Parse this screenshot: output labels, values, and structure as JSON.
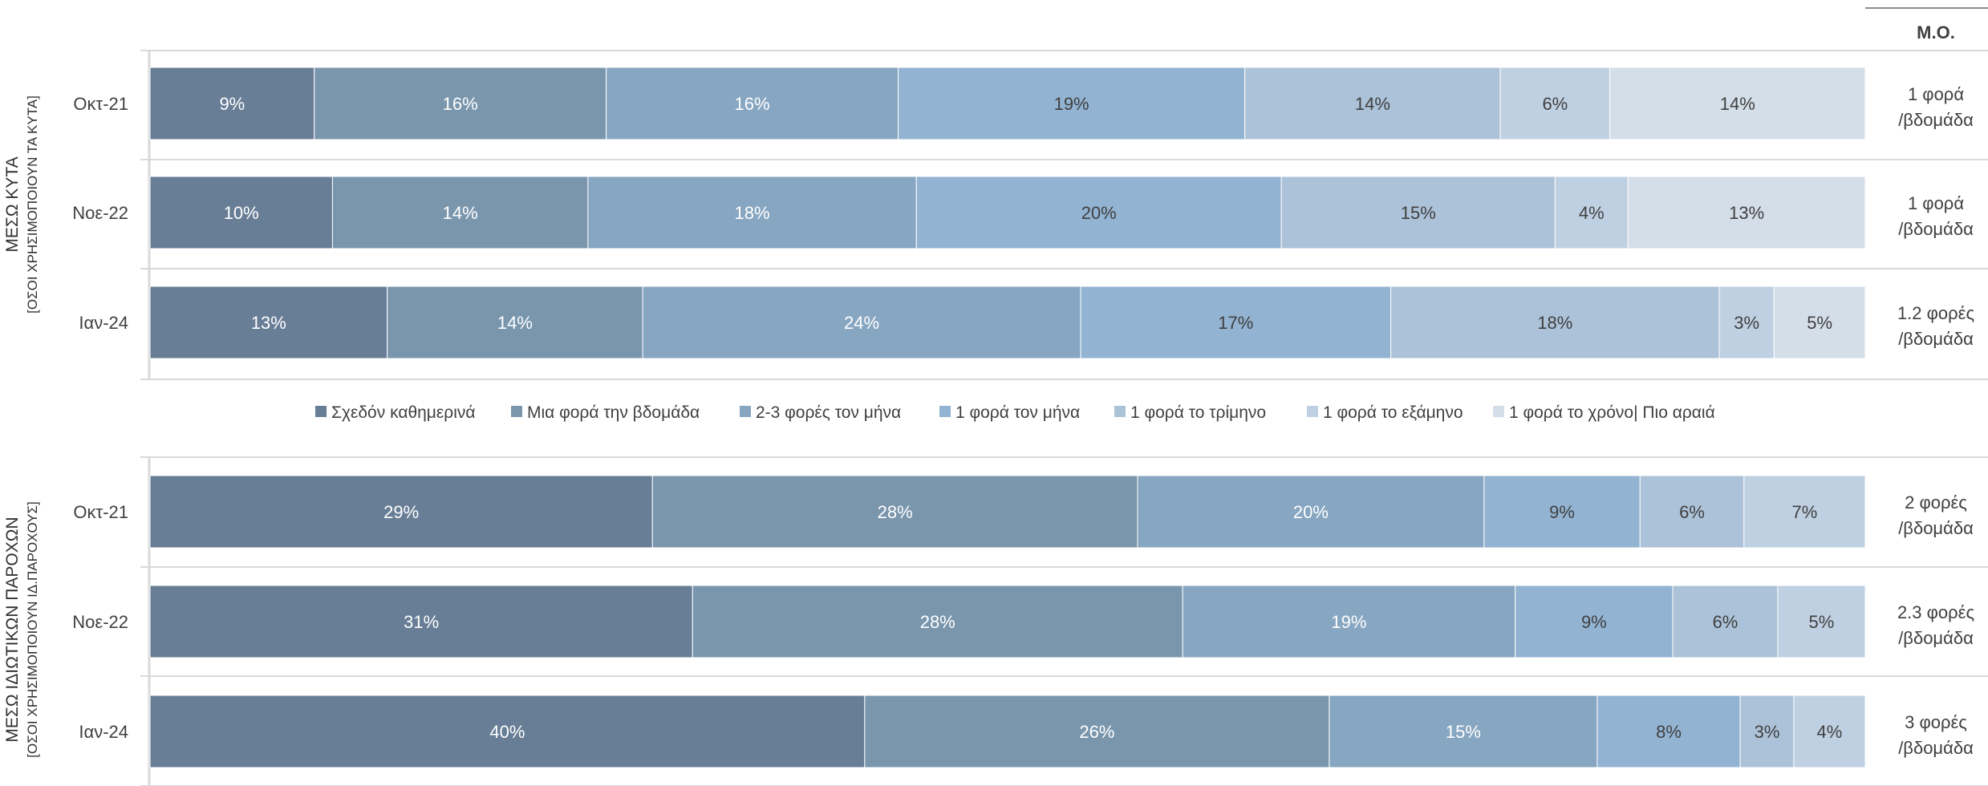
{
  "mo_header": "Μ.Ο.",
  "legend": [
    "Σχεδόν καθημερινά",
    "Μια φορά την βδομάδα",
    "2-3 φορές τον μήνα",
    "1 φορά τον μήνα",
    "1 φορά το τρίμηνο",
    "1 φορά το εξάμηνο",
    "1 φορά το χρόνο| Πιο αραιά"
  ],
  "colors": [
    "#687e96",
    "#7a96ad",
    "#87a6c1",
    "#92b3d2",
    "#acc2d8",
    "#bfd0e2",
    "#d4dee8"
  ],
  "chart_data": [
    {
      "type": "bar",
      "orientation": "horizontal",
      "stacked": true,
      "title": "ΜΕΣΩ ΚΥΤΑ",
      "subtitle": "[ΟΣΟΙ ΧΡΗΣΙΜΟΠΟΙΟΥΝ ΤΑ ΚΥΤΑ]",
      "categories": [
        "Οκτ-21",
        "Νοε-22",
        "Ιαν-24"
      ],
      "series": [
        {
          "name": "Σχεδόν καθημερινά",
          "values": [
            9,
            10,
            13
          ]
        },
        {
          "name": "Μια φορά την βδομάδα",
          "values": [
            16,
            14,
            14
          ]
        },
        {
          "name": "2-3 φορές τον μήνα",
          "values": [
            16,
            18,
            24
          ]
        },
        {
          "name": "1 φορά τον μήνα",
          "values": [
            19,
            20,
            17
          ]
        },
        {
          "name": "1 φορά το τρίμηνο",
          "values": [
            14,
            15,
            18
          ]
        },
        {
          "name": "1 φορά το εξάμηνο",
          "values": [
            6,
            4,
            3
          ]
        },
        {
          "name": "1 φορά το χρόνο| Πιο αραιά",
          "values": [
            14,
            13,
            5
          ]
        }
      ],
      "mo": [
        [
          "1 φορά",
          "/βδομάδα"
        ],
        [
          "1 φορά",
          "/βδομάδα"
        ],
        [
          "1.2 φορές",
          "/βδομάδα"
        ]
      ]
    },
    {
      "type": "bar",
      "orientation": "horizontal",
      "stacked": true,
      "title": "ΜΕΣΩ ΙΔΙΩΤΙΚΩΝ ΠΑΡΟΧΩΝ",
      "subtitle": "[ΟΣΟΙ ΧΡΗΣΙΜΟΠΟΙΟΥΝ ΙΔ.ΠΑΡΟΧΟΥΣ]",
      "categories": [
        "Οκτ-21",
        "Νοε-22",
        "Ιαν-24"
      ],
      "series": [
        {
          "name": "Σχεδόν καθημερινά",
          "values": [
            29,
            31,
            40
          ]
        },
        {
          "name": "Μια φορά την βδομάδα",
          "values": [
            28,
            28,
            26
          ]
        },
        {
          "name": "2-3 φορές τον μήνα",
          "values": [
            20,
            19,
            15
          ]
        },
        {
          "name": "1 φορά τον μήνα",
          "values": [
            9,
            9,
            8
          ]
        },
        {
          "name": "1 φορά το τρίμηνο",
          "values": [
            6,
            6,
            3
          ]
        },
        {
          "name": "1 φορά το εξάμηνο",
          "values": [
            7,
            5,
            4
          ]
        }
      ],
      "mo": [
        [
          "2 φορές",
          "/βδομάδα"
        ],
        [
          "2.3 φορές",
          "/βδομάδα"
        ],
        [
          "3 φορές",
          "/βδομάδα"
        ]
      ]
    }
  ]
}
